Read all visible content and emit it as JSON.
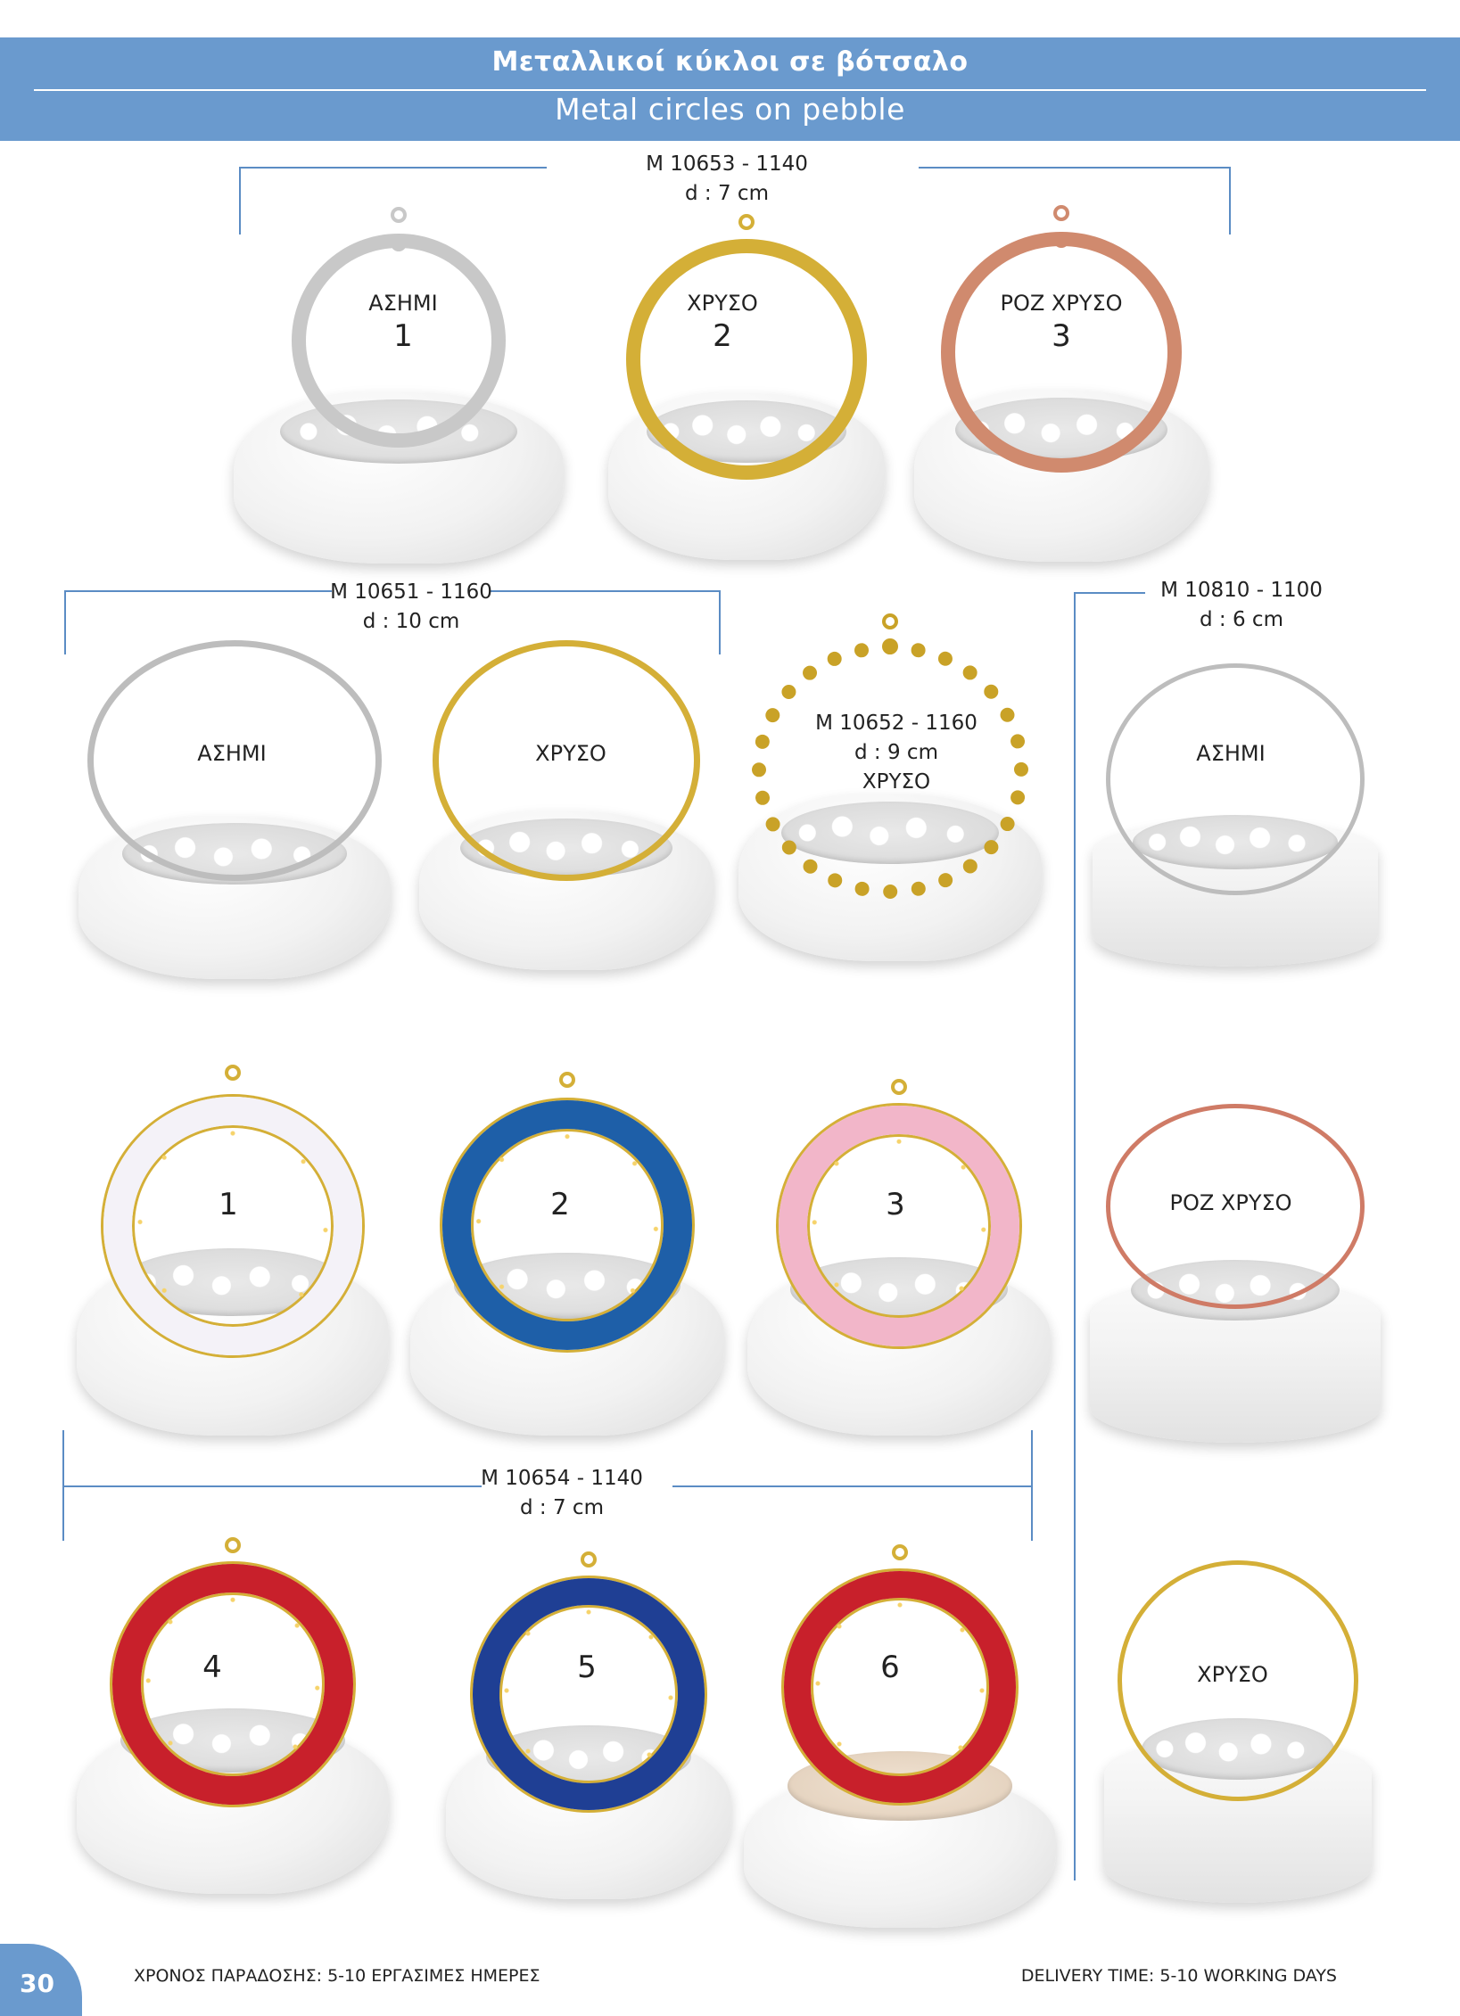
{
  "header": {
    "title_greek": "Μεταλλικοί κύκλοι σε βότσαλο",
    "title_english": "Metal circles on pebble"
  },
  "groups": {
    "m10653": {
      "code": "M 10653 - 1140",
      "size": "d : 7 cm"
    },
    "m10651": {
      "code": "M 10651 - 1160",
      "size": "d : 10 cm"
    },
    "m10652": {
      "code": "M 10652 - 1160",
      "size": "d : 9 cm",
      "finish": "ΧΡΥΣΟ"
    },
    "m10810": {
      "code": "M 10810 - 1100",
      "size": "d : 6 cm"
    },
    "m10654": {
      "code": "M 10654 - 1140",
      "size": "d : 7 cm"
    }
  },
  "products": {
    "p10653_1": {
      "finish": "ΑΣΗΜΙ",
      "number": "1",
      "color": "#c8c8c8"
    },
    "p10653_2": {
      "finish": "ΧΡΥΣΟ",
      "number": "2",
      "color": "#d4af37"
    },
    "p10653_3": {
      "finish": "ΡΟΖ ΧΡΥΣΟ",
      "number": "3",
      "color": "#d08a6e"
    },
    "p10651_a": {
      "finish": "ΑΣΗΜΙ",
      "color": "#bdbdbd"
    },
    "p10651_b": {
      "finish": "ΧΡΥΣΟ",
      "color": "#d4af37"
    },
    "p10652": {
      "color": "#c9a227"
    },
    "p10810_a": {
      "finish": "ΑΣΗΜΙ",
      "color": "#bdbdbd"
    },
    "p10810_b": {
      "finish": "ΡΟΖ ΧΡΥΣΟ",
      "color": "#cf7b66"
    },
    "p10810_c": {
      "finish": "ΧΡΥΣΟ",
      "color": "#d4af37"
    },
    "p10654_1": {
      "number": "1",
      "color": "#f4f2f8"
    },
    "p10654_2": {
      "number": "2",
      "color": "#1e5fa8"
    },
    "p10654_3": {
      "number": "3",
      "color": "#f2b6c9"
    },
    "p10654_4": {
      "number": "4",
      "color": "#c8202b"
    },
    "p10654_5": {
      "number": "5",
      "color": "#1f3f94"
    },
    "p10654_6": {
      "number": "6",
      "color": "#c8202b"
    }
  },
  "footer": {
    "page_number": "30",
    "delivery_greek": "ΧΡΟΝΟΣ ΠΑΡΑΔΟΣΗΣ: 5-10 ΕΡΓΑΣΙΜΕΣ ΗΜΕΡΕΣ",
    "delivery_english": "DELIVERY TIME: 5-10 WORKING DAYS"
  },
  "accent_color": "#6a9ace"
}
